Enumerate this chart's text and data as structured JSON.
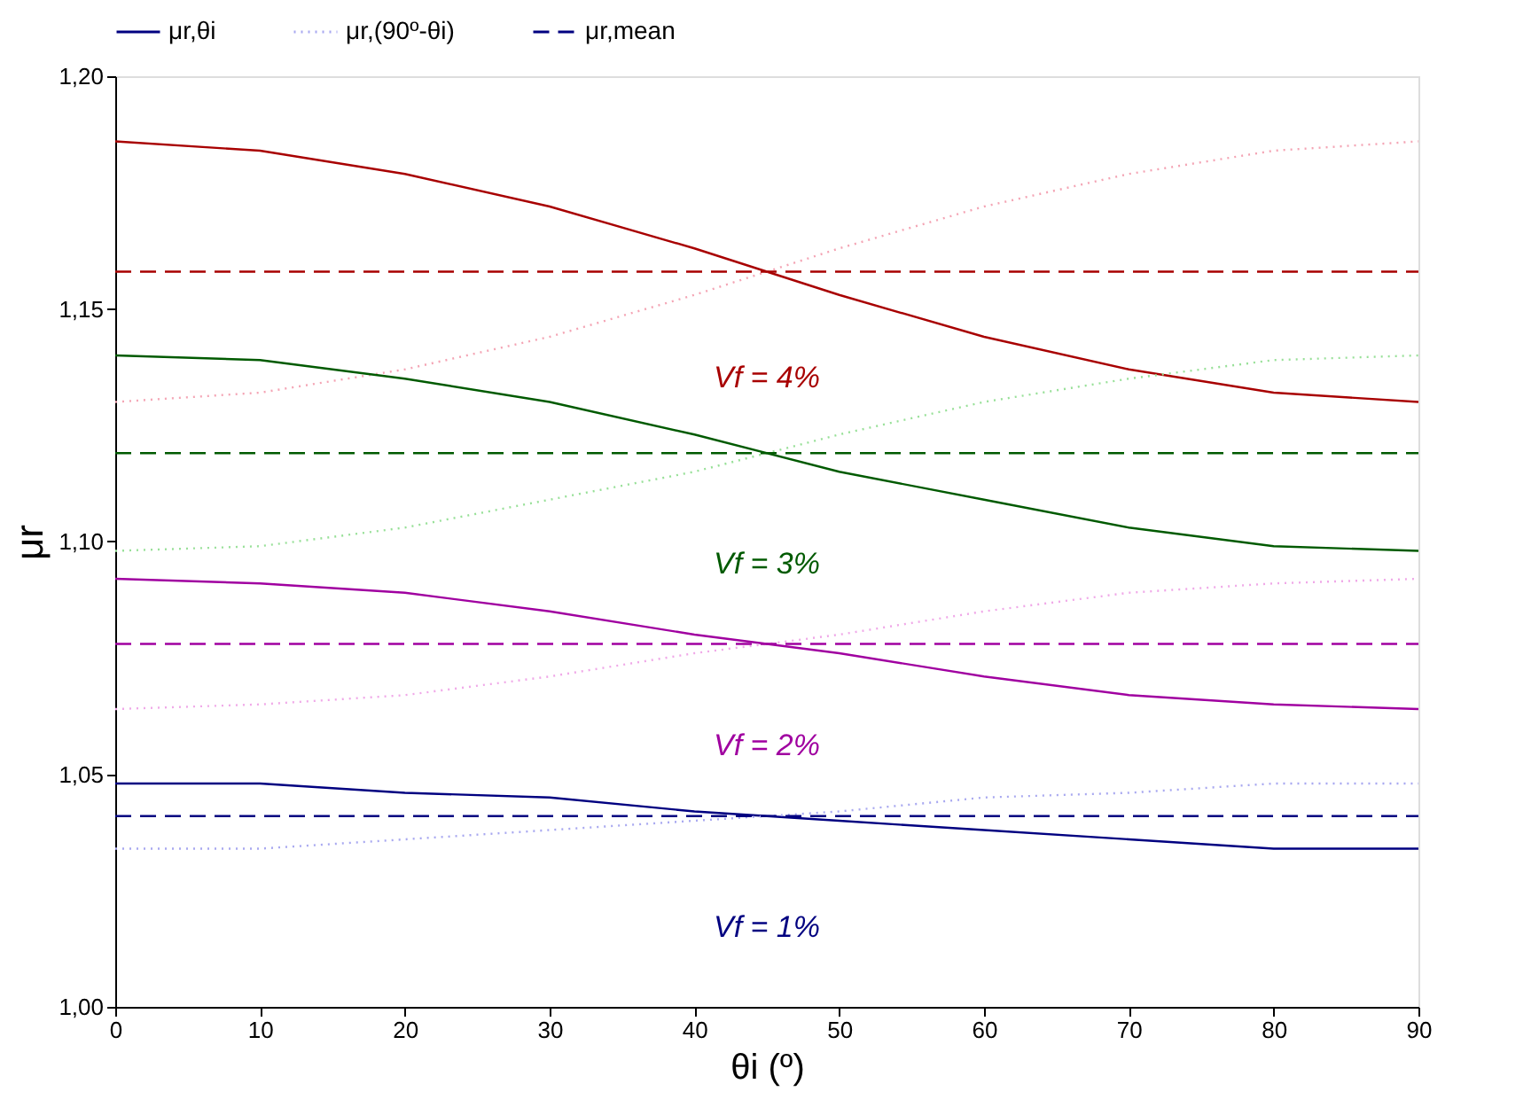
{
  "chart_data": {
    "type": "line",
    "xlabel": "θi (º)",
    "ylabel": "μr",
    "x": [
      0,
      10,
      20,
      30,
      40,
      50,
      60,
      70,
      80,
      90
    ],
    "series": [
      {
        "color": "#a80000",
        "line_style": "solid",
        "values": [
          1.186,
          1.184,
          1.179,
          1.172,
          1.163,
          1.153,
          1.144,
          1.137,
          1.132,
          1.13
        ]
      },
      {
        "color": "#f4a4b4",
        "line_style": "dotted",
        "values": [
          1.13,
          1.132,
          1.137,
          1.144,
          1.153,
          1.163,
          1.172,
          1.179,
          1.184,
          1.186
        ]
      },
      {
        "color": "#a80000",
        "line_style": "dashed",
        "values": [
          1.158,
          1.158,
          1.158,
          1.158,
          1.158,
          1.158,
          1.158,
          1.158,
          1.158,
          1.158
        ]
      },
      {
        "color": "#005a00",
        "line_style": "solid",
        "values": [
          1.14,
          1.139,
          1.135,
          1.13,
          1.123,
          1.115,
          1.109,
          1.103,
          1.099,
          1.098
        ]
      },
      {
        "color": "#98e098",
        "line_style": "dotted",
        "values": [
          1.098,
          1.099,
          1.103,
          1.109,
          1.115,
          1.123,
          1.13,
          1.135,
          1.139,
          1.14
        ]
      },
      {
        "color": "#005a00",
        "line_style": "dashed",
        "values": [
          1.119,
          1.119,
          1.119,
          1.119,
          1.119,
          1.119,
          1.119,
          1.119,
          1.119,
          1.119
        ]
      },
      {
        "color": "#a000a0",
        "line_style": "solid",
        "values": [
          1.092,
          1.091,
          1.089,
          1.085,
          1.08,
          1.076,
          1.071,
          1.067,
          1.065,
          1.064
        ]
      },
      {
        "color": "#f0a8e8",
        "line_style": "dotted",
        "values": [
          1.064,
          1.065,
          1.067,
          1.071,
          1.076,
          1.08,
          1.085,
          1.089,
          1.091,
          1.092
        ]
      },
      {
        "color": "#a000a0",
        "line_style": "dashed",
        "values": [
          1.078,
          1.078,
          1.078,
          1.078,
          1.078,
          1.078,
          1.078,
          1.078,
          1.078,
          1.078
        ]
      },
      {
        "name": "μr,θi",
        "color": "#000080",
        "line_style": "solid",
        "values": [
          1.048,
          1.048,
          1.046,
          1.045,
          1.042,
          1.04,
          1.038,
          1.036,
          1.034,
          1.034
        ]
      },
      {
        "name": "μr,(90º-θi)",
        "color": "#a8a8f0",
        "line_style": "dotted",
        "values": [
          1.034,
          1.034,
          1.036,
          1.038,
          1.04,
          1.042,
          1.045,
          1.046,
          1.048,
          1.048
        ]
      },
      {
        "name": "μr,mean",
        "color": "#000080",
        "line_style": "dashed",
        "values": [
          1.041,
          1.041,
          1.041,
          1.041,
          1.041,
          1.041,
          1.041,
          1.041,
          1.041,
          1.041
        ]
      }
    ],
    "annotations": [
      "Vf = 4%",
      "Vf = 3%",
      "Vf = 2%",
      "Vf = 1%"
    ],
    "xlim": [
      0,
      90
    ],
    "xticks": [
      0,
      10,
      20,
      30,
      40,
      50,
      60,
      70,
      80,
      90
    ],
    "ylim": [
      1.0,
      1.2
    ],
    "yticks": [
      {
        "value": 1.0,
        "label": "1,00"
      },
      {
        "value": 1.05,
        "label": "1,05"
      },
      {
        "value": 1.1,
        "label": "1,10"
      },
      {
        "value": 1.15,
        "label": "1,15"
      },
      {
        "value": 1.2,
        "label": "1,20"
      }
    ],
    "grid": false,
    "legend": "top",
    "marker": "none"
  }
}
